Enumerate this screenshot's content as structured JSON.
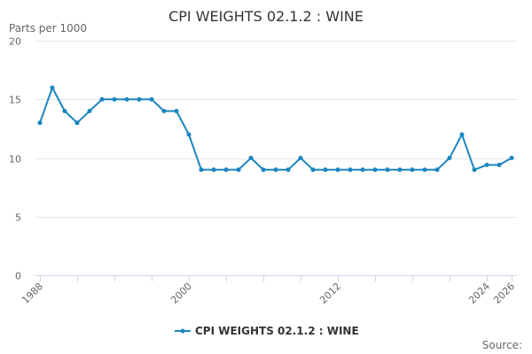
{
  "chart_data": {
    "type": "line",
    "title": "CPI WEIGHTS 02.1.2 : WINE",
    "ylabel": "Parts per 1000",
    "xlabel": "",
    "ylim": [
      0,
      20
    ],
    "yticks": [
      0,
      5,
      10,
      15,
      20
    ],
    "xlim": [
      1988,
      2026
    ],
    "xticks": [
      1988,
      2000,
      2012,
      2024,
      2026
    ],
    "grid": true,
    "legend_placement": "bottom-center",
    "series": [
      {
        "name": "CPI WEIGHTS 02.1.2 : WINE",
        "color": "#1a85c0",
        "x": [
          1988,
          1989,
          1990,
          1991,
          1992,
          1993,
          1994,
          1995,
          1996,
          1997,
          1998,
          1999,
          2000,
          2001,
          2002,
          2003,
          2004,
          2005,
          2006,
          2007,
          2008,
          2009,
          2010,
          2011,
          2012,
          2013,
          2014,
          2015,
          2016,
          2017,
          2018,
          2019,
          2020,
          2021,
          2022,
          2023,
          2024,
          2025,
          2026
        ],
        "values": [
          13,
          16,
          14,
          13,
          14,
          15,
          15,
          15,
          15,
          15,
          14,
          14,
          12,
          9,
          9,
          9,
          9,
          10,
          9,
          9,
          9,
          10,
          9,
          9,
          9,
          9,
          9,
          9,
          9,
          9,
          9,
          9,
          9,
          10,
          12,
          9,
          9.4,
          9.4,
          10
        ]
      }
    ]
  },
  "source_label": "Source:"
}
